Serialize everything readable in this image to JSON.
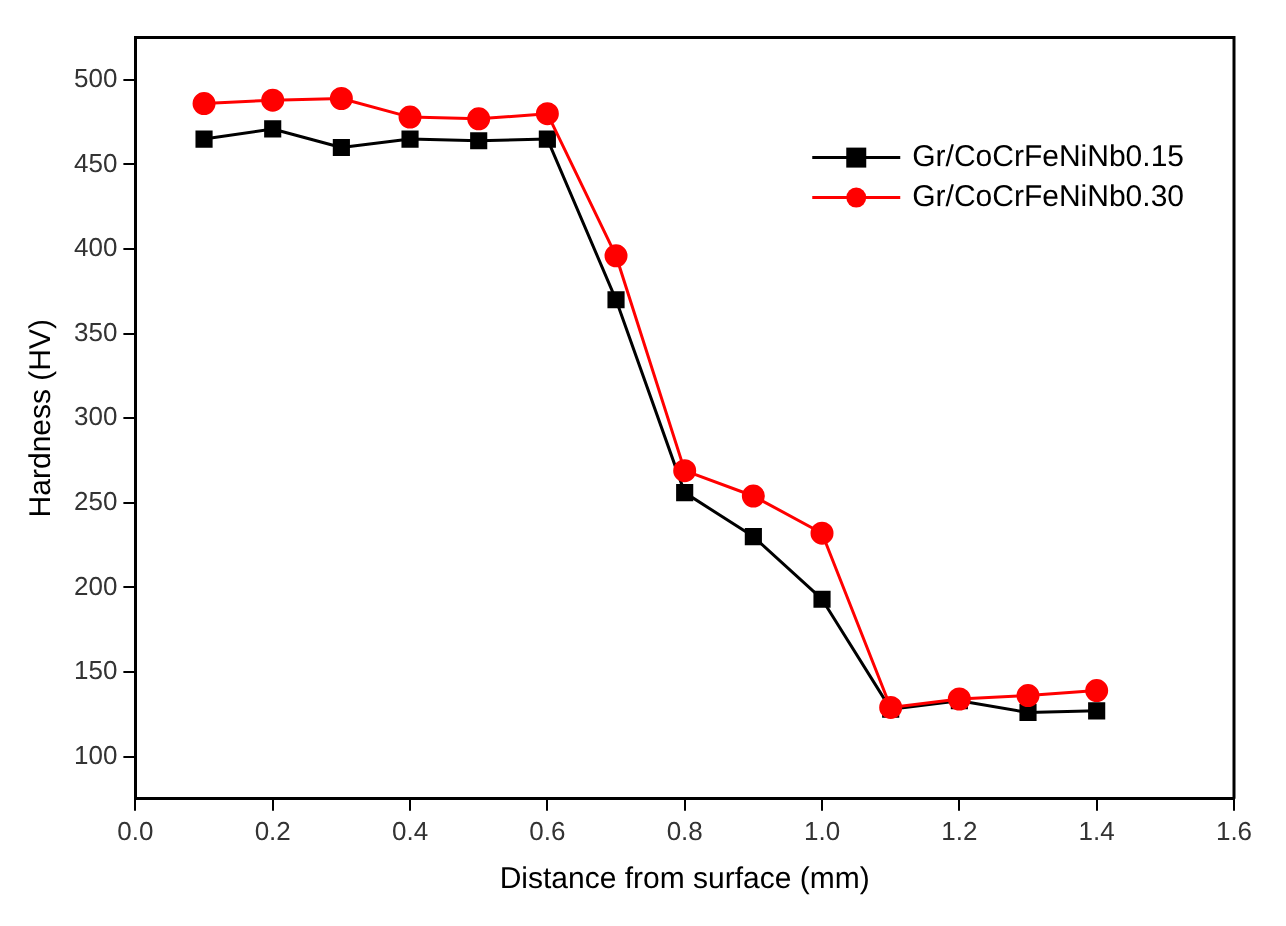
{
  "chart_data": {
    "type": "line",
    "xlabel": "Distance from surface (mm)",
    "ylabel": "Hardness (HV)",
    "x": [
      0.1,
      0.2,
      0.3,
      0.4,
      0.5,
      0.6,
      0.7,
      0.8,
      0.9,
      1.0,
      1.1,
      1.2,
      1.3,
      1.4
    ],
    "series": [
      {
        "name": "Gr/CoCrFeNiNb0.15",
        "color": "#000000",
        "marker": "square",
        "values": [
          465,
          471,
          460,
          465,
          464,
          465,
          370,
          256,
          230,
          193,
          128,
          133,
          126,
          127
        ]
      },
      {
        "name": "Gr/CoCrFeNiNb0.30",
        "color": "#ff0000",
        "marker": "circle",
        "values": [
          486,
          488,
          489,
          478,
          477,
          480,
          396,
          269,
          254,
          232,
          129,
          134,
          136,
          139
        ]
      }
    ],
    "xlim": [
      0,
      1.6
    ],
    "xticks": [
      {
        "value": 0,
        "label": "0.0"
      },
      0.2,
      0.4,
      0.6,
      0.8,
      {
        "value": 1,
        "label": "1.0"
      },
      1.2,
      1.4,
      1.6
    ],
    "ylim": [
      75,
      525
    ],
    "yticks": [
      100,
      150,
      200,
      250,
      300,
      350,
      400,
      450,
      500
    ],
    "grid": false,
    "legend": "top right",
    "line_style": "solid"
  }
}
